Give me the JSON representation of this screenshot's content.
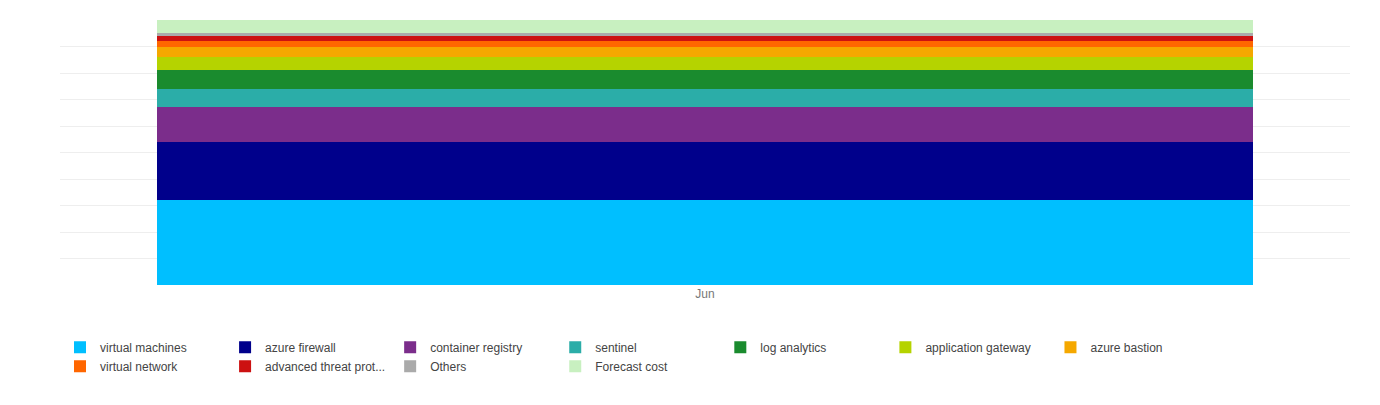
{
  "chart_data": {
    "type": "bar",
    "stacked": true,
    "categories": [
      "Jun"
    ],
    "series": [
      {
        "name": "virtual machines",
        "color": "#00BFFF",
        "values": [
          32
        ]
      },
      {
        "name": "azure firewall",
        "color": "#00008B",
        "values": [
          22
        ]
      },
      {
        "name": "container registry",
        "color": "#7B2D8B",
        "values": [
          13
        ]
      },
      {
        "name": "sentinel",
        "color": "#2BADA8",
        "values": [
          7
        ]
      },
      {
        "name": "log analytics",
        "color": "#1A8B2E",
        "values": [
          7
        ]
      },
      {
        "name": "application gateway",
        "color": "#B5D300",
        "values": [
          5
        ]
      },
      {
        "name": "azure bastion",
        "color": "#F5A800",
        "values": [
          4
        ]
      },
      {
        "name": "virtual network",
        "color": "#FF6600",
        "values": [
          2
        ]
      },
      {
        "name": "advanced threat prot...",
        "color": "#CC1111",
        "values": [
          2
        ]
      },
      {
        "name": "Others",
        "color": "#AAAAAA",
        "values": [
          1
        ]
      },
      {
        "name": "Forecast cost",
        "color": "#C8F0C0",
        "values": [
          5
        ]
      }
    ],
    "ylim": [
      0,
      100
    ],
    "yticks": [
      0,
      10,
      20,
      30,
      40,
      50,
      60,
      70,
      80,
      90,
      100
    ],
    "grid": true,
    "tick_labels": "x",
    "legend": "bottom"
  }
}
